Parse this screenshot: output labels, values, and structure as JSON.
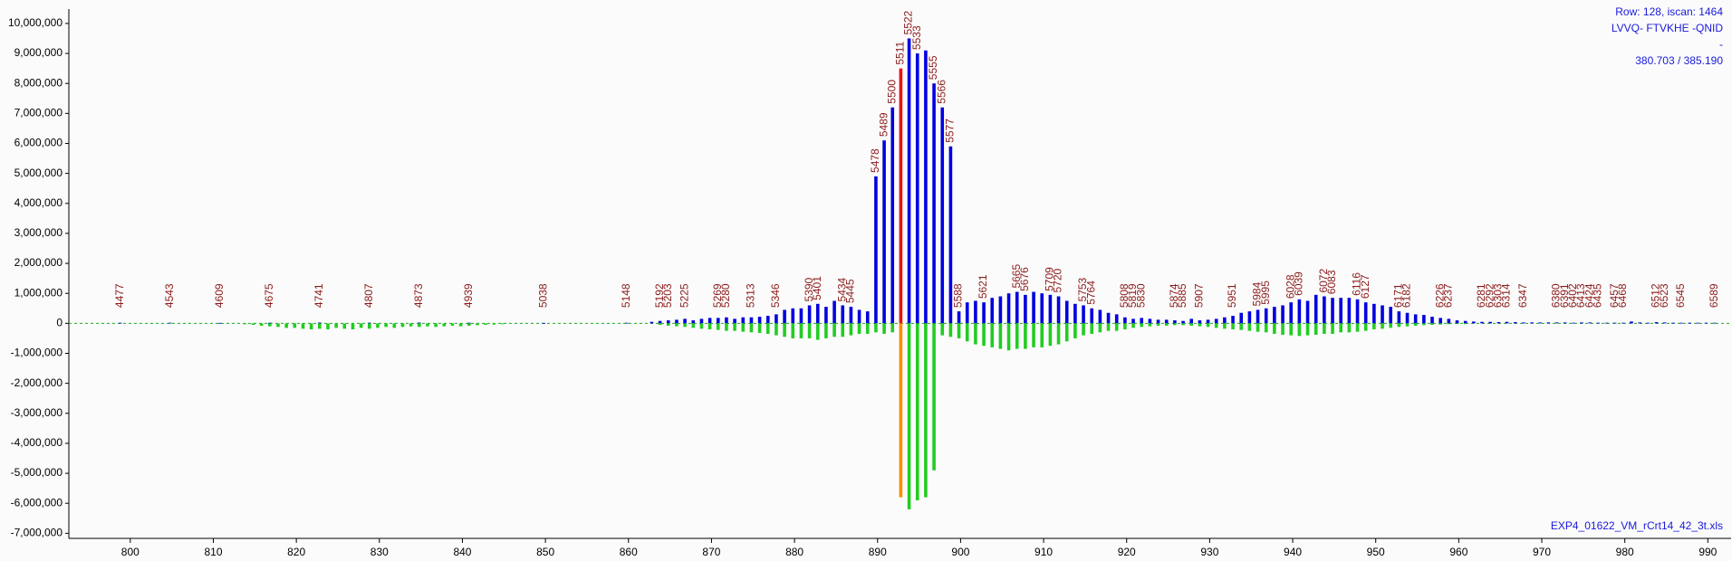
{
  "chart_data": {
    "type": "mirror-stem",
    "annotations": [
      "Row: 128, iscan: 1464",
      "LVVQ- FTVKHE -QNID",
      "-",
      "380.703 / 385.190"
    ],
    "file_name": "EXP4_01622_VM_rCrt14_42_3t.xls",
    "xlim": [
      792.6,
      992.8
    ],
    "xticks": [
      800,
      810,
      820,
      830,
      840,
      850,
      860,
      870,
      880,
      890,
      900,
      910,
      920,
      930,
      940,
      950,
      960,
      970,
      980,
      990
    ],
    "ylim": [
      -7170000,
      10480000
    ],
    "yticks": [
      {
        "value": -7000000,
        "label": "-7,000,000"
      },
      {
        "value": -6000000,
        "label": "-6,000,000"
      },
      {
        "value": -5000000,
        "label": "-5,000,000"
      },
      {
        "value": -4000000,
        "label": "-4,000,000"
      },
      {
        "value": -3000000,
        "label": "-3,000,000"
      },
      {
        "value": -2000000,
        "label": "-2,000,000"
      },
      {
        "value": -1000000,
        "label": "-1,000,000"
      },
      {
        "value": 0,
        "label": "0"
      },
      {
        "value": 1000000,
        "label": "1,000,000"
      },
      {
        "value": 2000000,
        "label": "2,000,000"
      },
      {
        "value": 3000000,
        "label": "3,000,000"
      },
      {
        "value": 4000000,
        "label": "4,000,000"
      },
      {
        "value": 5000000,
        "label": "5,000,000"
      },
      {
        "value": 6000000,
        "label": "6,000,000"
      },
      {
        "value": 7000000,
        "label": "7,000,000"
      },
      {
        "value": 8000000,
        "label": "8,000,000"
      },
      {
        "value": 9000000,
        "label": "9,000,000"
      },
      {
        "value": 10000000,
        "label": "10,000,000"
      }
    ],
    "series": [
      {
        "color": "#0000e0",
        "x": [
          798.8,
          804.8,
          810.8,
          816.8,
          822.8,
          828.8,
          834.8,
          840.8,
          849.8,
          859.8,
          862.8,
          863.8,
          864.8,
          865.8,
          866.8,
          867.8,
          868.8,
          869.8,
          870.8,
          871.8,
          872.8,
          873.8,
          874.8,
          875.8,
          876.8,
          877.8,
          878.8,
          879.8,
          880.8,
          881.8,
          882.8,
          883.8,
          884.8,
          885.8,
          886.8,
          887.8,
          888.8,
          889.8,
          890.8,
          891.8,
          893.8,
          894.8,
          895.8,
          896.8,
          897.8,
          898.8,
          899.8,
          900.8,
          901.8,
          902.8,
          903.8,
          904.8,
          905.8,
          906.8,
          907.8,
          908.8,
          909.8,
          910.8,
          911.8,
          912.8,
          913.8,
          914.8,
          915.8,
          916.8,
          917.8,
          918.8,
          919.8,
          920.8,
          921.8,
          922.8,
          923.8,
          924.8,
          925.8,
          926.8,
          927.8,
          928.8,
          929.8,
          930.8,
          931.8,
          932.8,
          933.8,
          934.8,
          935.8,
          936.8,
          937.8,
          938.8,
          939.8,
          940.8,
          941.8,
          942.8,
          943.8,
          944.8,
          945.8,
          946.8,
          947.8,
          948.8,
          949.8,
          950.8,
          951.8,
          952.8,
          953.8,
          954.8,
          955.8,
          956.8,
          957.8,
          958.8,
          959.8,
          960.8,
          961.8,
          962.8,
          963.8,
          964.8,
          965.8,
          966.8,
          967.8,
          968.8,
          969.8,
          970.8,
          971.8,
          972.8,
          973.8,
          974.8,
          975.8,
          976.8,
          977.8,
          978.8,
          979.8,
          980.8,
          981.8,
          982.8,
          983.8,
          984.8,
          985.8,
          986.8,
          987.8,
          988.8,
          989.8,
          990.8
        ],
        "values": [
          20000,
          20000,
          15000,
          20000,
          25000,
          20000,
          25000,
          20000,
          15000,
          20000,
          50000,
          80000,
          100000,
          120000,
          150000,
          100000,
          150000,
          180000,
          180000,
          200000,
          150000,
          200000,
          200000,
          220000,
          250000,
          300000,
          450000,
          500000,
          500000,
          600000,
          650000,
          550000,
          750000,
          600000,
          550000,
          450000,
          400000,
          4900000,
          6100000,
          7200000,
          9500000,
          9000000,
          9100000,
          8000000,
          7200000,
          5900000,
          400000,
          700000,
          750000,
          700000,
          850000,
          900000,
          1000000,
          1050000,
          950000,
          1050000,
          1000000,
          950000,
          900000,
          750000,
          650000,
          600000,
          500000,
          450000,
          350000,
          300000,
          200000,
          150000,
          180000,
          150000,
          120000,
          120000,
          100000,
          80000,
          150000,
          100000,
          120000,
          150000,
          200000,
          250000,
          350000,
          400000,
          450000,
          500000,
          550000,
          600000,
          700000,
          800000,
          750000,
          950000,
          900000,
          850000,
          850000,
          850000,
          800000,
          700000,
          650000,
          600000,
          550000,
          400000,
          350000,
          300000,
          280000,
          220000,
          180000,
          150000,
          100000,
          80000,
          60000,
          50000,
          50000,
          40000,
          50000,
          40000,
          30000,
          30000,
          30000,
          30000,
          30000,
          30000,
          20000,
          30000,
          30000,
          20000,
          20000,
          20000,
          20000,
          60000,
          30000,
          20000,
          40000,
          30000,
          20000,
          20000,
          20000,
          20000,
          20000,
          20000
        ],
        "labels": [
          "4477",
          "4543",
          "4609",
          "4675",
          "4741",
          "4807",
          "4873",
          "4939",
          "5038",
          "5148",
          null,
          "5192",
          "5203",
          null,
          "5225",
          null,
          null,
          null,
          "5269",
          "5280",
          null,
          null,
          "5313",
          null,
          null,
          "5346",
          null,
          null,
          null,
          "5390",
          "5401",
          null,
          null,
          "5434",
          "5445",
          null,
          null,
          "5478",
          "5489",
          "5500",
          "5522",
          "5533",
          null,
          "5555",
          "5566",
          "5577",
          "5588",
          null,
          null,
          "5621",
          null,
          null,
          null,
          "5665",
          "5676",
          null,
          null,
          "5709",
          "5720",
          null,
          null,
          "5753",
          "5764",
          null,
          null,
          null,
          "5808",
          "5819",
          "5830",
          null,
          null,
          null,
          "5874",
          "5885",
          null,
          "5907",
          null,
          null,
          null,
          "5951",
          null,
          null,
          "5984",
          "5995",
          null,
          null,
          "6028",
          "6039",
          null,
          null,
          "6072",
          "6083",
          null,
          null,
          "6116",
          "6127",
          null,
          null,
          null,
          "6171",
          "6182",
          null,
          null,
          null,
          "6226",
          "6237",
          null,
          null,
          null,
          "6281",
          "6292",
          "6303",
          "6314",
          null,
          "6347",
          null,
          null,
          null,
          "6380",
          "6391",
          "6402",
          "6413",
          "6424",
          "6435",
          null,
          "6457",
          "6468",
          null,
          null,
          null,
          "6512",
          "6523",
          null,
          "6545",
          null,
          null,
          null,
          "6589"
        ]
      },
      {
        "color": "#ee1111",
        "x": [
          892.8
        ],
        "values": [
          8500000
        ],
        "labels": [
          "5511"
        ]
      },
      {
        "color": "#22cc22",
        "x": [
          813.8,
          814.8,
          815.8,
          816.8,
          817.8,
          818.8,
          819.8,
          820.8,
          821.8,
          822.8,
          823.8,
          824.8,
          825.8,
          826.8,
          827.8,
          828.8,
          829.8,
          830.8,
          831.8,
          832.8,
          833.8,
          834.8,
          835.8,
          836.8,
          837.8,
          838.8,
          839.8,
          840.8,
          841.8,
          842.8,
          843.8,
          844.8,
          863.8,
          864.8,
          865.8,
          866.8,
          867.8,
          868.8,
          869.8,
          870.8,
          871.8,
          872.8,
          873.8,
          874.8,
          875.8,
          876.8,
          877.8,
          878.8,
          879.8,
          880.8,
          881.8,
          882.8,
          883.8,
          884.8,
          885.8,
          886.8,
          887.8,
          888.8,
          889.8,
          890.8,
          891.8,
          893.8,
          894.8,
          895.8,
          896.8,
          897.8,
          898.8,
          899.8,
          900.8,
          901.8,
          902.8,
          903.8,
          904.8,
          905.8,
          906.8,
          907.8,
          908.8,
          909.8,
          910.8,
          911.8,
          912.8,
          913.8,
          914.8,
          915.8,
          916.8,
          917.8,
          918.8,
          919.8,
          920.8,
          921.8,
          922.8,
          923.8,
          924.8,
          925.8,
          926.8,
          927.8,
          928.8,
          929.8,
          930.8,
          931.8,
          932.8,
          933.8,
          934.8,
          935.8,
          936.8,
          937.8,
          938.8,
          939.8,
          940.8,
          941.8,
          942.8,
          943.8,
          944.8,
          945.8,
          946.8,
          947.8,
          948.8,
          949.8,
          950.8,
          951.8,
          952.8,
          953.8,
          954.8,
          955.8,
          956.8,
          957.8,
          958.8,
          959.8,
          960.8
        ],
        "values": [
          -30000,
          -50000,
          -80000,
          -100000,
          -120000,
          -150000,
          -150000,
          -180000,
          -200000,
          -180000,
          -200000,
          -150000,
          -180000,
          -200000,
          -150000,
          -180000,
          -150000,
          -120000,
          -150000,
          -120000,
          -100000,
          -120000,
          -100000,
          -120000,
          -100000,
          -80000,
          -100000,
          -80000,
          -60000,
          -50000,
          -40000,
          -30000,
          -50000,
          -80000,
          -100000,
          -120000,
          -150000,
          -180000,
          -200000,
          -220000,
          -250000,
          -250000,
          -280000,
          -300000,
          -320000,
          -350000,
          -400000,
          -450000,
          -500000,
          -500000,
          -500000,
          -550000,
          -500000,
          -450000,
          -450000,
          -400000,
          -350000,
          -350000,
          -300000,
          -350000,
          -300000,
          -6200000,
          -5900000,
          -5800000,
          -4900000,
          -400000,
          -450000,
          -500000,
          -600000,
          -700000,
          -750000,
          -800000,
          -850000,
          -900000,
          -850000,
          -850000,
          -800000,
          -800000,
          -750000,
          -700000,
          -600000,
          -500000,
          -400000,
          -350000,
          -300000,
          -250000,
          -250000,
          -200000,
          -150000,
          -120000,
          -100000,
          -80000,
          -80000,
          -60000,
          -60000,
          -80000,
          -100000,
          -120000,
          -150000,
          -180000,
          -200000,
          -220000,
          -250000,
          -280000,
          -300000,
          -350000,
          -380000,
          -400000,
          -420000,
          -400000,
          -380000,
          -350000,
          -350000,
          -300000,
          -300000,
          -280000,
          -250000,
          -200000,
          -180000,
          -150000,
          -120000,
          -100000,
          -80000,
          -60000,
          -50000,
          -40000,
          -30000,
          -20000,
          -20000
        ]
      },
      {
        "color": "#ff8c00",
        "x": [
          892.8
        ],
        "values": [
          -5800000
        ]
      }
    ],
    "zero_line_color": "#22aa22",
    "label_color": "#8b1a1a",
    "annotation_color": "#1a1adc"
  }
}
